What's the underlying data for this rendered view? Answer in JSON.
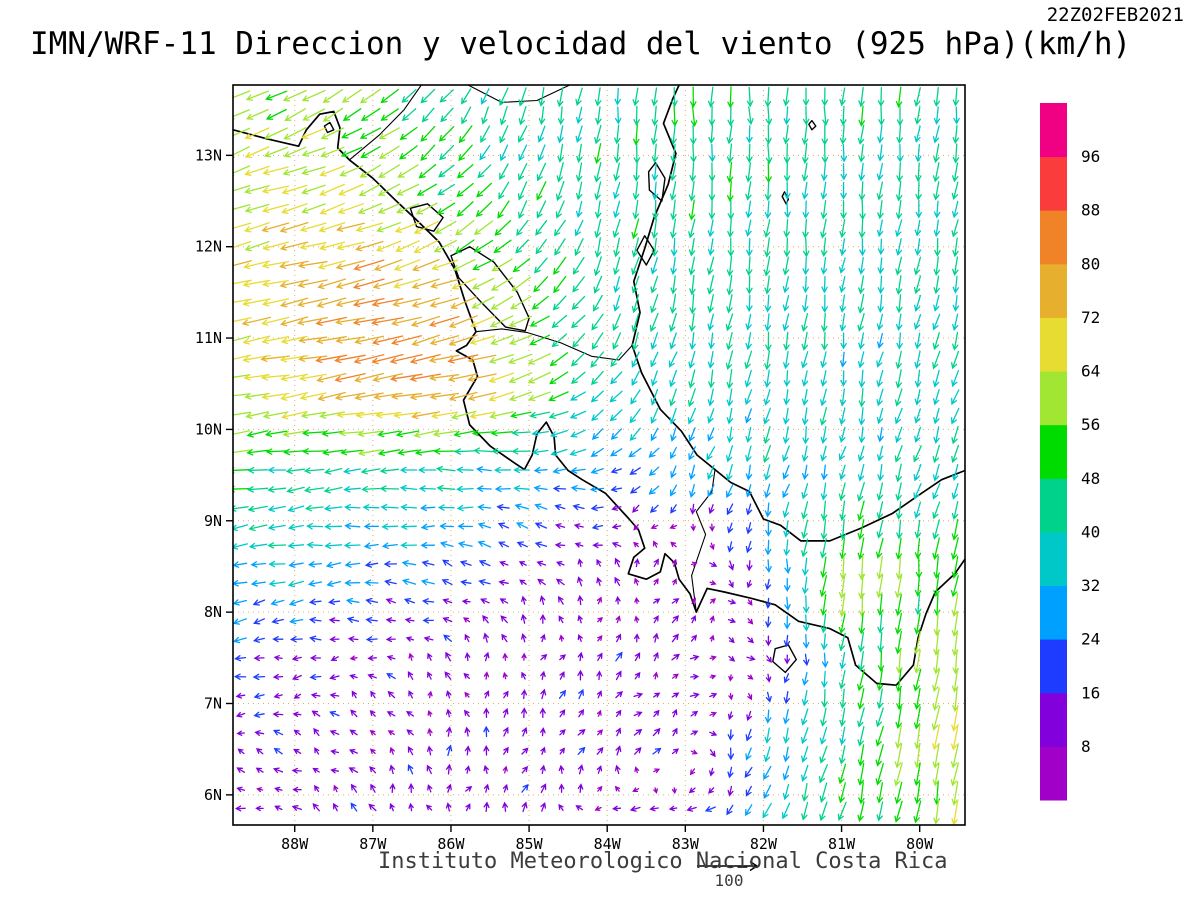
{
  "header": {
    "title": "IMN/WRF-11 Direccion y velocidad del viento (925 hPa)(km/h)",
    "timestamp": "22Z02FEB2021"
  },
  "footer": {
    "caption": "Instituto Meteorologico Nacional Costa Rica",
    "reference_label": "100"
  },
  "axes": {
    "lat_labels": [
      "13N",
      "12N",
      "11N",
      "10N",
      "9N",
      "8N",
      "7N",
      "6N"
    ],
    "lat_values": [
      13,
      12,
      11,
      10,
      9,
      8,
      7,
      6
    ],
    "lon_labels": [
      "88W",
      "87W",
      "86W",
      "85W",
      "84W",
      "83W",
      "82W",
      "81W",
      "80W"
    ],
    "lon_values": [
      -88,
      -87,
      -86,
      -85,
      -84,
      -83,
      -82,
      -81,
      -80
    ]
  },
  "chart_data": {
    "type": "vector_field",
    "title": "IMN/WRF-11 Direccion y velocidad del viento (925 hPa)(km/h)",
    "model": "IMN/WRF-11",
    "variable": "wind direction and speed",
    "level_hPa": 925,
    "units": "km/h",
    "valid_time": "22Z02FEB2021",
    "reference_speed": 100,
    "lon_range": [
      -88.79,
      -79.42
    ],
    "lat_range": [
      5.67,
      13.77
    ],
    "speed_levels": [
      8,
      16,
      24,
      32,
      40,
      48,
      56,
      64,
      72,
      80,
      88,
      96
    ],
    "speed_colors": [
      "#a000c8",
      "#8200dc",
      "#1e3cff",
      "#00a0ff",
      "#00c8c8",
      "#00d28c",
      "#00dc00",
      "#a0e632",
      "#e6dc32",
      "#e6af2d",
      "#f08228",
      "#fa3c3c",
      "#f00082"
    ],
    "grid_lons": [
      -89.0,
      -88.0,
      -87.0,
      -86.0,
      -85.0,
      -84.0,
      -83.0,
      -82.0,
      -81.0,
      -80.0,
      -79.4
    ],
    "grid_lats": [
      5.5,
      6.5,
      7.5,
      8.5,
      9.5,
      10.5,
      11.5,
      12.5,
      13.5,
      14.1
    ],
    "u_kmh": [
      [
        -10,
        -8,
        -5,
        2,
        6,
        -18,
        -22,
        -15,
        -12,
        -8,
        -8
      ],
      [
        -12,
        -10,
        -8,
        0,
        5,
        8,
        10,
        -10,
        -12,
        -12,
        -10
      ],
      [
        -18,
        -15,
        -10,
        -5,
        2,
        5,
        8,
        5,
        -5,
        -8,
        -10
      ],
      [
        -35,
        -32,
        -28,
        -22,
        -12,
        -5,
        5,
        0,
        -8,
        -5,
        -8
      ],
      [
        -50,
        -42,
        -40,
        -38,
        -30,
        -25,
        -12,
        -10,
        -8,
        -12,
        -15
      ],
      [
        -60,
        -70,
        -80,
        -82,
        -60,
        -25,
        -10,
        -8,
        -5,
        -10,
        -12
      ],
      [
        -65,
        -72,
        -80,
        -70,
        -45,
        -15,
        -8,
        -5,
        -5,
        -8,
        -8
      ],
      [
        -60,
        -65,
        -60,
        -45,
        -20,
        -8,
        -5,
        -3,
        -3,
        -5,
        -6
      ],
      [
        -50,
        -55,
        -45,
        -25,
        -10,
        -5,
        0,
        0,
        -2,
        -5,
        -5
      ],
      [
        -50,
        -55,
        -45,
        -25,
        -10,
        -5,
        0,
        0,
        -2,
        -5,
        -5
      ]
    ],
    "v_kmh": [
      [
        3,
        6,
        10,
        12,
        10,
        -2,
        -10,
        -25,
        -45,
        -55,
        -60
      ],
      [
        2,
        5,
        8,
        12,
        12,
        10,
        5,
        -30,
        -45,
        -58,
        -62
      ],
      [
        -5,
        -3,
        3,
        8,
        10,
        10,
        8,
        -5,
        -40,
        -55,
        -62
      ],
      [
        -8,
        -5,
        0,
        5,
        8,
        8,
        8,
        -20,
        -62,
        -50,
        -55
      ],
      [
        -4,
        -5,
        -3,
        0,
        5,
        -8,
        -25,
        -32,
        -34,
        -35,
        -36
      ],
      [
        -10,
        -12,
        -15,
        -15,
        -20,
        -30,
        -38,
        -38,
        -36,
        -36,
        -36
      ],
      [
        -15,
        -15,
        -18,
        -25,
        -30,
        -40,
        -42,
        -40,
        -38,
        -38,
        -38
      ],
      [
        -20,
        -18,
        -25,
        -30,
        -40,
        -42,
        -43,
        -42,
        -40,
        -40,
        -40
      ],
      [
        -25,
        -25,
        -30,
        -35,
        -40,
        -42,
        -45,
        -45,
        -43,
        -42,
        -42
      ],
      [
        -25,
        -25,
        -30,
        -35,
        -40,
        -42,
        -45,
        -45,
        -43,
        -42,
        -42
      ]
    ],
    "geo": {
      "coastlines": [
        [
          [
            -88.79,
            13.28
          ],
          [
            -88.35,
            13.18
          ],
          [
            -87.95,
            13.1
          ],
          [
            -87.85,
            13.28
          ],
          [
            -87.68,
            13.45
          ],
          [
            -87.5,
            13.48
          ],
          [
            -87.42,
            13.3
          ],
          [
            -87.45,
            13.08
          ],
          [
            -87.3,
            12.95
          ],
          [
            -87.0,
            12.75
          ],
          [
            -86.7,
            12.5
          ],
          [
            -86.45,
            12.3
          ],
          [
            -86.15,
            12.05
          ],
          [
            -85.95,
            11.75
          ],
          [
            -85.82,
            11.4
          ],
          [
            -85.68,
            11.07
          ],
          [
            -85.8,
            10.92
          ],
          [
            -85.93,
            10.86
          ],
          [
            -85.72,
            10.76
          ],
          [
            -85.66,
            10.58
          ],
          [
            -85.84,
            10.32
          ],
          [
            -85.76,
            10.05
          ],
          [
            -85.5,
            9.82
          ],
          [
            -85.2,
            9.64
          ],
          [
            -85.06,
            9.56
          ],
          [
            -84.96,
            9.72
          ],
          [
            -84.9,
            9.95
          ],
          [
            -84.78,
            10.08
          ],
          [
            -84.68,
            9.92
          ],
          [
            -84.66,
            9.72
          ],
          [
            -84.5,
            9.55
          ],
          [
            -84.32,
            9.45
          ],
          [
            -84.02,
            9.3
          ],
          [
            -83.72,
            9.02
          ],
          [
            -83.6,
            8.9
          ],
          [
            -83.52,
            8.7
          ],
          [
            -83.66,
            8.6
          ],
          [
            -83.73,
            8.42
          ],
          [
            -83.5,
            8.36
          ],
          [
            -83.32,
            8.44
          ],
          [
            -83.26,
            8.64
          ],
          [
            -83.14,
            8.54
          ],
          [
            -83.08,
            8.36
          ],
          [
            -82.94,
            8.2
          ],
          [
            -82.86,
            8.0
          ],
          [
            -82.72,
            8.26
          ],
          [
            -82.5,
            8.22
          ],
          [
            -82.15,
            8.15
          ],
          [
            -81.85,
            8.08
          ],
          [
            -81.55,
            7.9
          ],
          [
            -81.15,
            7.82
          ],
          [
            -80.92,
            7.72
          ],
          [
            -80.82,
            7.42
          ],
          [
            -80.55,
            7.22
          ],
          [
            -80.3,
            7.2
          ],
          [
            -80.08,
            7.42
          ],
          [
            -80.02,
            7.72
          ],
          [
            -79.92,
            7.98
          ],
          [
            -79.8,
            8.22
          ],
          [
            -79.55,
            8.42
          ],
          [
            -79.42,
            8.58
          ]
        ],
        [
          [
            -79.42,
            9.55
          ],
          [
            -79.72,
            9.45
          ],
          [
            -79.98,
            9.3
          ],
          [
            -80.35,
            9.08
          ],
          [
            -80.75,
            8.92
          ],
          [
            -81.15,
            8.78
          ],
          [
            -81.52,
            8.78
          ],
          [
            -81.78,
            8.95
          ],
          [
            -82.0,
            9.02
          ],
          [
            -82.18,
            9.32
          ],
          [
            -82.42,
            9.42
          ],
          [
            -82.62,
            9.56
          ],
          [
            -82.85,
            9.72
          ],
          [
            -83.05,
            9.98
          ],
          [
            -83.32,
            10.22
          ],
          [
            -83.56,
            10.62
          ],
          [
            -83.68,
            10.92
          ],
          [
            -83.58,
            11.28
          ],
          [
            -83.66,
            11.62
          ],
          [
            -83.52,
            11.98
          ],
          [
            -83.4,
            12.32
          ],
          [
            -83.22,
            12.68
          ],
          [
            -83.12,
            13.02
          ],
          [
            -83.28,
            13.35
          ],
          [
            -83.16,
            13.62
          ],
          [
            -83.08,
            13.77
          ]
        ]
      ],
      "borders": [
        [
          [
            -87.3,
            12.95
          ],
          [
            -86.92,
            13.22
          ],
          [
            -86.6,
            13.5
          ],
          [
            -86.38,
            13.77
          ]
        ],
        [
          [
            -85.78,
            13.77
          ],
          [
            -85.35,
            13.58
          ],
          [
            -84.9,
            13.6
          ],
          [
            -84.48,
            13.77
          ]
        ],
        [
          [
            -85.68,
            11.07
          ],
          [
            -85.35,
            11.1
          ],
          [
            -85.02,
            11.06
          ],
          [
            -84.6,
            10.95
          ],
          [
            -84.2,
            10.8
          ],
          [
            -83.85,
            10.76
          ],
          [
            -83.68,
            10.92
          ]
        ],
        [
          [
            -82.86,
            8.0
          ],
          [
            -82.92,
            8.4
          ],
          [
            -82.74,
            8.85
          ],
          [
            -82.86,
            9.1
          ],
          [
            -82.66,
            9.32
          ],
          [
            -82.62,
            9.56
          ]
        ]
      ],
      "lakes_islands": [
        [
          [
            -86.0,
            11.9
          ],
          [
            -85.76,
            12.0
          ],
          [
            -85.45,
            11.83
          ],
          [
            -85.15,
            11.5
          ],
          [
            -85.0,
            11.22
          ],
          [
            -85.05,
            11.08
          ],
          [
            -85.3,
            11.12
          ],
          [
            -85.6,
            11.38
          ],
          [
            -85.9,
            11.66
          ]
        ],
        [
          [
            -86.52,
            12.42
          ],
          [
            -86.3,
            12.47
          ],
          [
            -86.1,
            12.32
          ],
          [
            -86.22,
            12.17
          ],
          [
            -86.44,
            12.22
          ]
        ],
        [
          [
            -81.85,
            7.6
          ],
          [
            -81.68,
            7.64
          ],
          [
            -81.58,
            7.48
          ],
          [
            -81.72,
            7.34
          ],
          [
            -81.88,
            7.46
          ]
        ],
        [
          [
            -83.38,
            12.92
          ],
          [
            -83.26,
            12.75
          ],
          [
            -83.3,
            12.5
          ],
          [
            -83.46,
            12.62
          ],
          [
            -83.47,
            12.82
          ]
        ],
        [
          [
            -83.52,
            12.12
          ],
          [
            -83.4,
            11.96
          ],
          [
            -83.5,
            11.8
          ],
          [
            -83.62,
            11.96
          ]
        ],
        [
          [
            -81.73,
            12.6
          ],
          [
            -81.68,
            12.52
          ],
          [
            -81.71,
            12.47
          ],
          [
            -81.76,
            12.55
          ]
        ],
        [
          [
            -87.62,
            13.32
          ],
          [
            -87.55,
            13.36
          ],
          [
            -87.5,
            13.28
          ],
          [
            -87.58,
            13.25
          ]
        ],
        [
          [
            -81.38,
            13.38
          ],
          [
            -81.33,
            13.32
          ],
          [
            -81.38,
            13.28
          ],
          [
            -81.42,
            13.34
          ]
        ]
      ]
    }
  }
}
